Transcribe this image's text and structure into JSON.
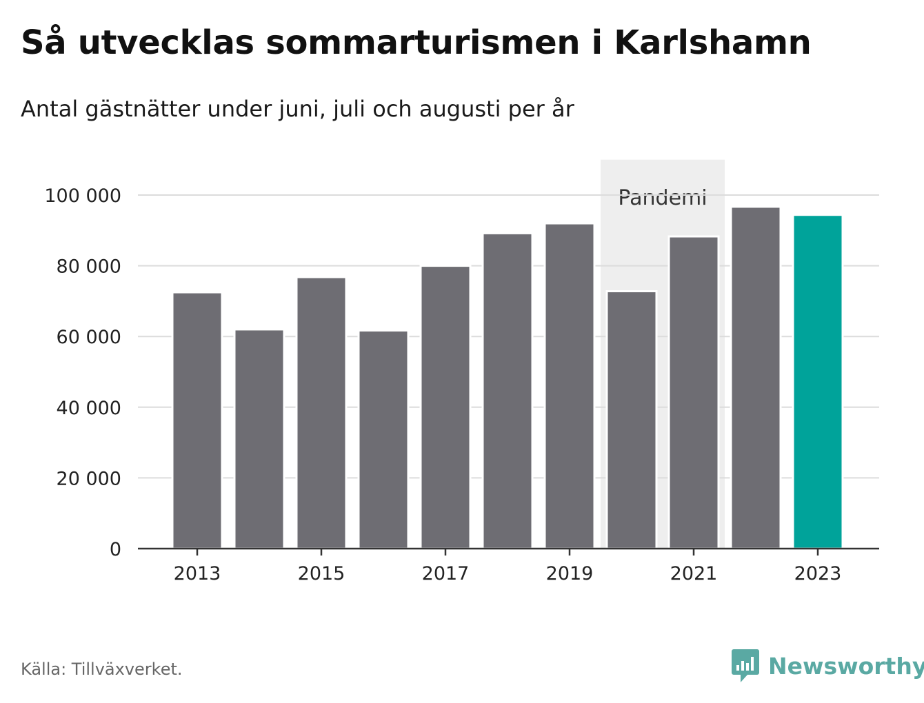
{
  "title": "Så utvecklas sommarturismen i Karlshamn",
  "subtitle": "Antal gästnätter under juni, juli och augusti per år",
  "source": "Källa: Tillväxverket.",
  "brand": {
    "name": "Newsworthy",
    "icon": "newsworthy-logo-icon",
    "color": "#5aa9a3"
  },
  "chart_data": {
    "type": "bar",
    "categories": [
      "2013",
      "2014",
      "2015",
      "2016",
      "2017",
      "2018",
      "2019",
      "2020",
      "2021",
      "2022",
      "2023"
    ],
    "values": [
      72500,
      62000,
      76800,
      61700,
      80000,
      89200,
      92000,
      72800,
      88300,
      96700,
      94400
    ],
    "x_tick_labels": [
      "2013",
      "2015",
      "2017",
      "2019",
      "2021",
      "2023"
    ],
    "y_ticks": [
      0,
      20000,
      40000,
      60000,
      80000,
      100000
    ],
    "y_tick_labels": [
      "0",
      "20 000",
      "40 000",
      "60 000",
      "80 000",
      "100 000"
    ],
    "ylim": [
      0,
      110000
    ],
    "grid": true,
    "bar_color": "#6e6d73",
    "highlight_color": "#00a39a",
    "highlight_category": "2023",
    "annotation": {
      "label": "Pandemi",
      "from": "2020",
      "to": "2021",
      "color": "#eeeeee"
    }
  }
}
